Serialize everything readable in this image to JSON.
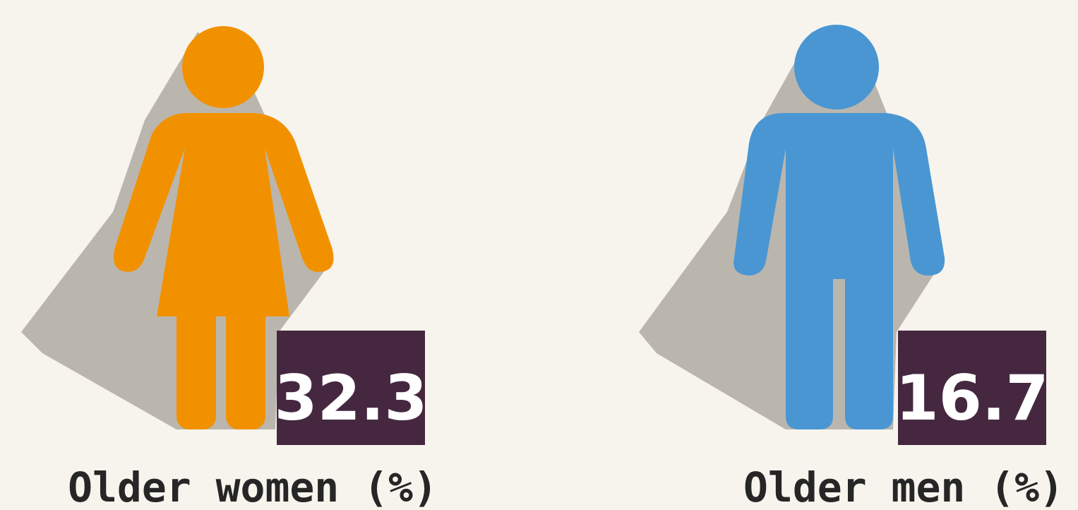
{
  "figures": [
    {
      "label": "Older women (%)",
      "value": "32.3"
    },
    {
      "label": "Older men (%)",
      "value": "16.7"
    }
  ]
}
